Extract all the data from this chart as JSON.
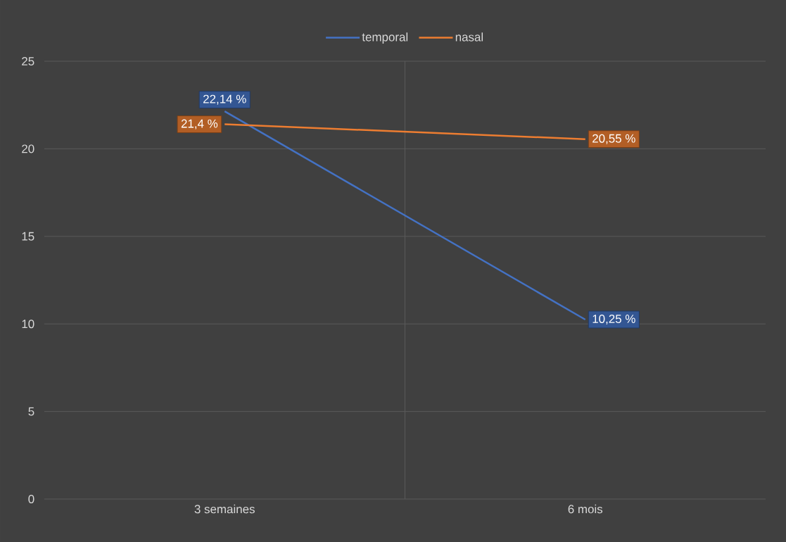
{
  "chart_data": {
    "type": "line",
    "categories": [
      "3 semaines",
      "6 mois"
    ],
    "series": [
      {
        "name": "temporal",
        "color": "#4472c4",
        "values": [
          22.14,
          10.25
        ],
        "value_labels": [
          "22,14 %",
          "10,25 %"
        ]
      },
      {
        "name": "nasal",
        "color": "#ed7d31",
        "values": [
          21.4,
          20.55
        ],
        "value_labels": [
          "21,4 %",
          "20,55 %"
        ]
      }
    ],
    "ylim": [
      0,
      25
    ],
    "yticks": [
      0,
      5,
      10,
      15,
      20,
      25
    ],
    "grid": true,
    "legend": "top",
    "marker": "none",
    "line_style": "solid"
  }
}
